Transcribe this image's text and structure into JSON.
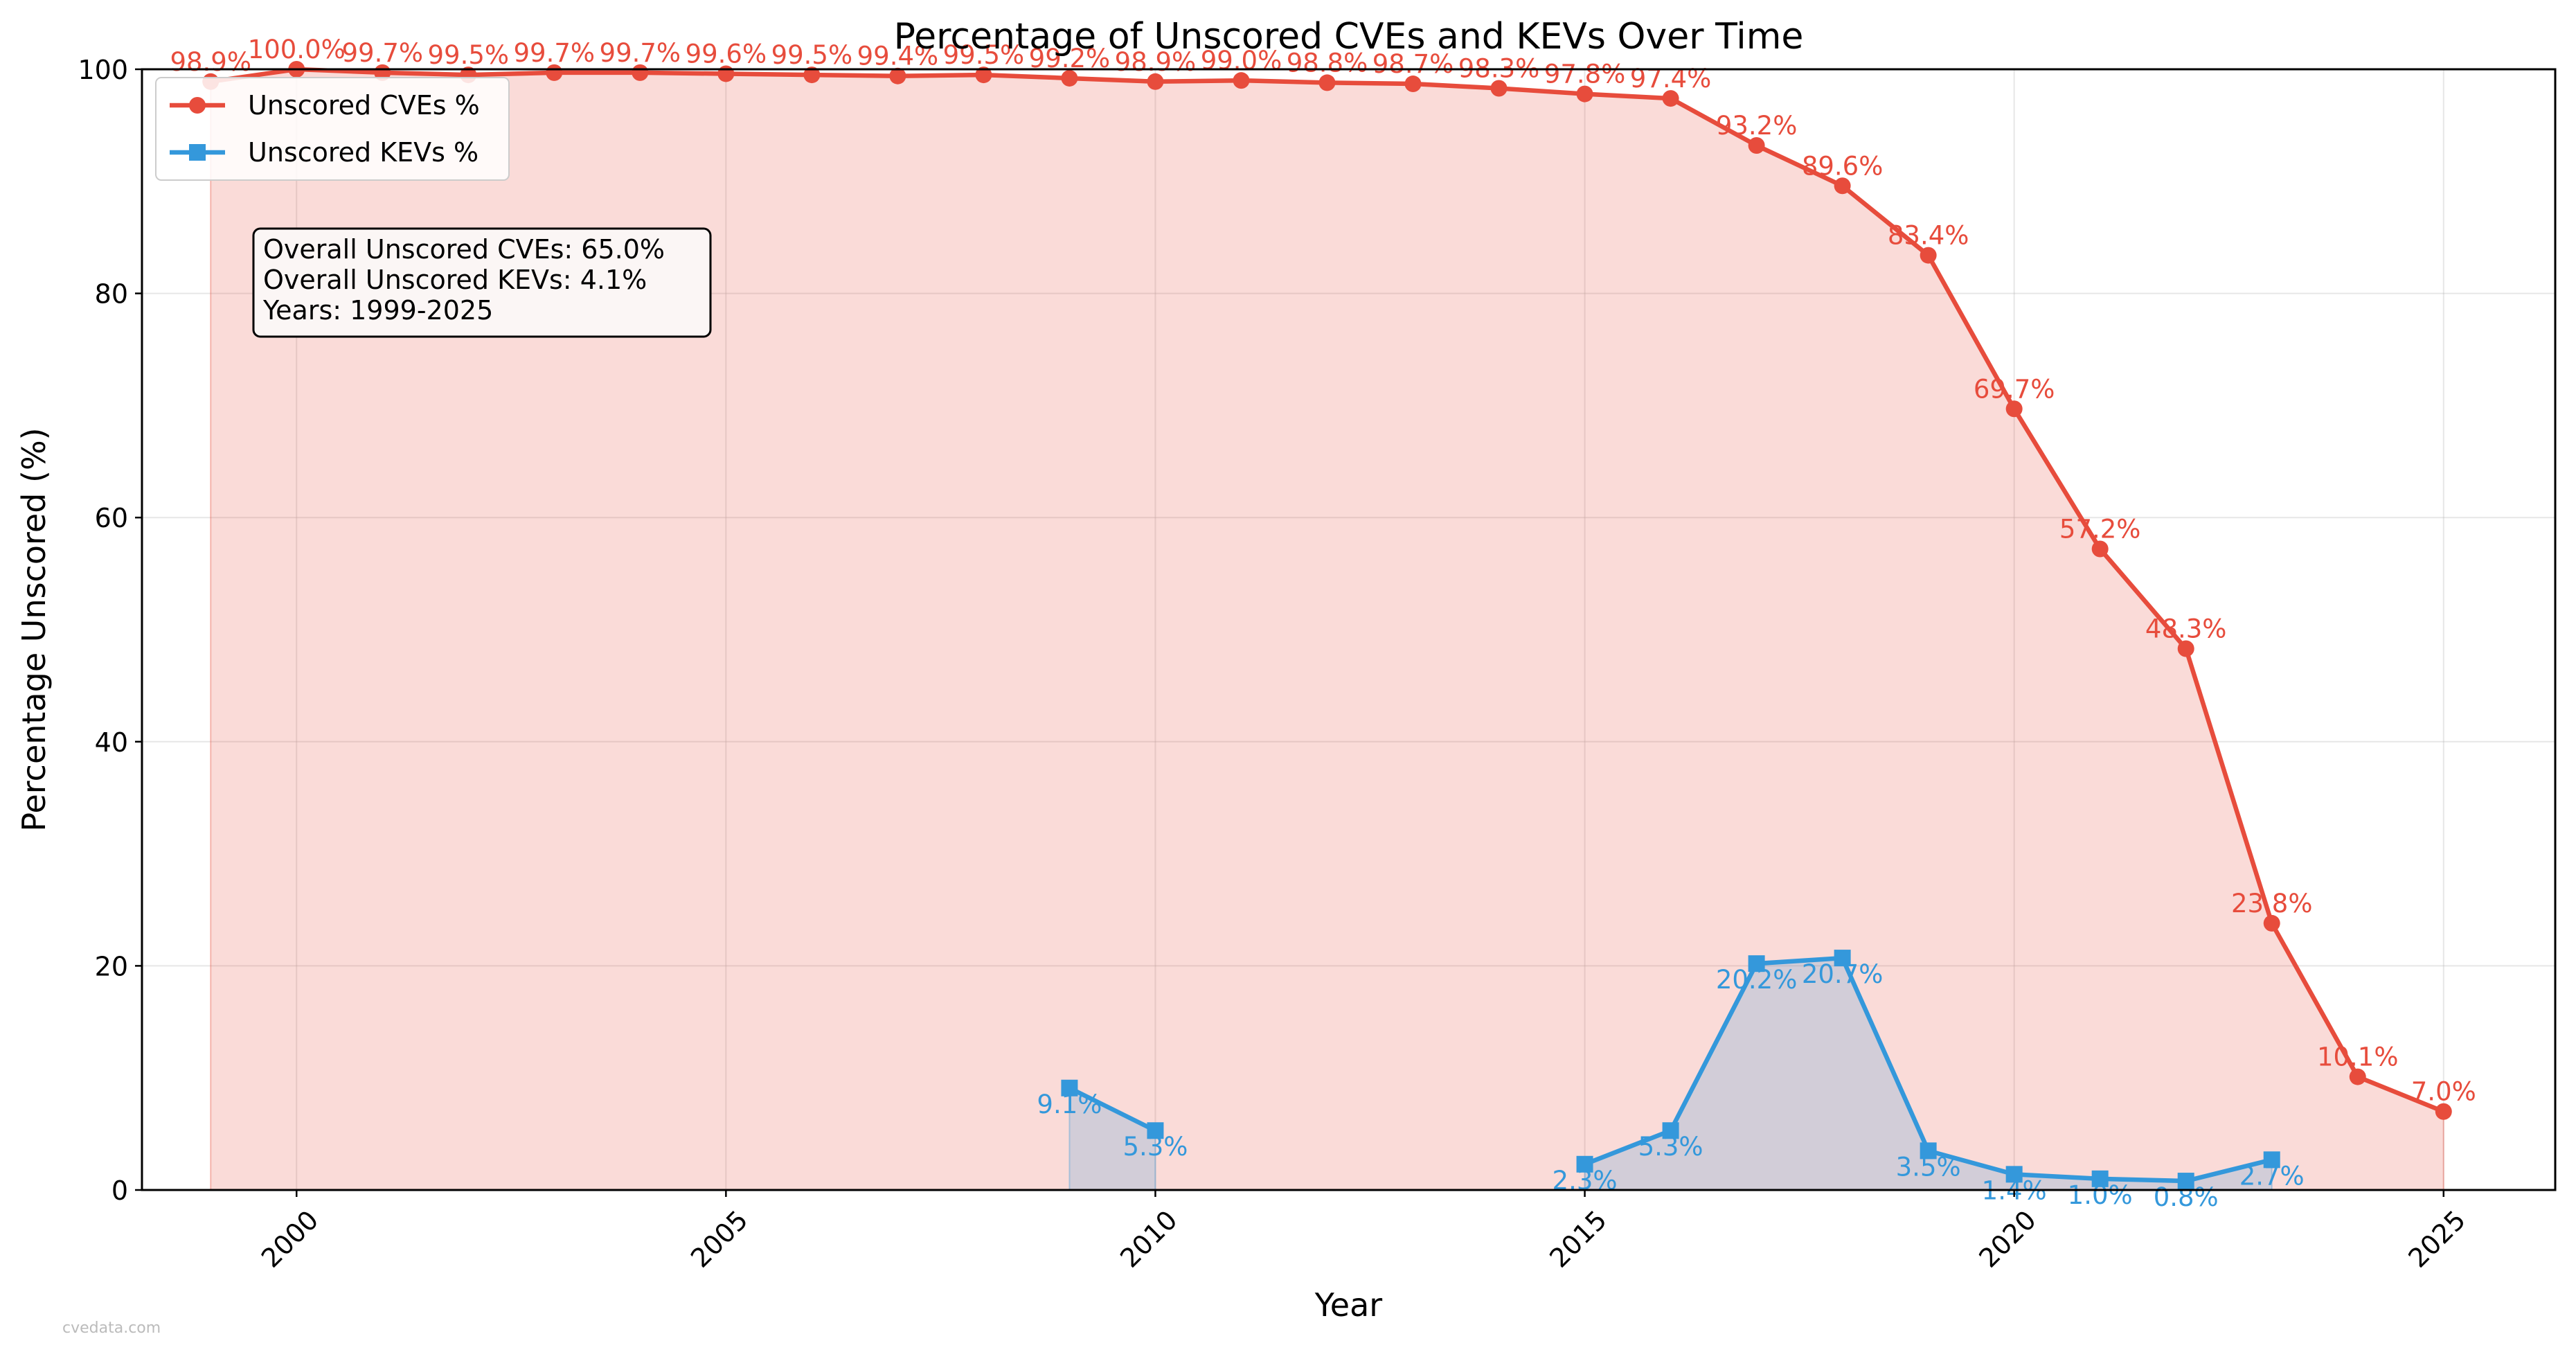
{
  "chart_data": {
    "type": "line",
    "title": "Percentage of Unscored CVEs and KEVs Over Time",
    "xlabel": "Year",
    "ylabel": "Percentage Unscored (%)",
    "xlim": [
      1998.2,
      2026.3
    ],
    "ylim": [
      0,
      100
    ],
    "x_ticks": [
      2000,
      2005,
      2010,
      2015,
      2020,
      2025
    ],
    "y_ticks": [
      0,
      20,
      40,
      60,
      80,
      100
    ],
    "grid": true,
    "legend_position": "top-left",
    "series": [
      {
        "name": "Unscored CVEs %",
        "color": "#e74c3c",
        "fill": "#f9d9d6",
        "marker": "circle",
        "x": [
          1999,
          2000,
          2001,
          2002,
          2003,
          2004,
          2005,
          2006,
          2007,
          2008,
          2009,
          2010,
          2011,
          2012,
          2013,
          2014,
          2015,
          2016,
          2017,
          2018,
          2019,
          2020,
          2021,
          2022,
          2023,
          2024,
          2025
        ],
        "values": [
          98.9,
          100.0,
          99.7,
          99.5,
          99.7,
          99.7,
          99.6,
          99.5,
          99.4,
          99.5,
          99.2,
          98.9,
          99.0,
          98.8,
          98.7,
          98.3,
          97.8,
          97.4,
          93.2,
          89.6,
          83.4,
          69.7,
          57.2,
          48.3,
          23.8,
          10.1,
          7.0
        ],
        "labels": [
          "98.9%",
          "100.0%",
          "99.7%",
          "99.5%",
          "99.7%",
          "99.7%",
          "99.6%",
          "99.5%",
          "99.4%",
          "99.5%",
          "99.2%",
          "98.9%",
          "99.0%",
          "98.8%",
          "98.7%",
          "98.3%",
          "97.8%",
          "97.4%",
          "93.2%",
          "89.6%",
          "83.4%",
          "69.7%",
          "57.2%",
          "48.3%",
          "23.8%",
          "10.1%",
          "7.0%"
        ]
      },
      {
        "name": "Unscored KEVs %",
        "color": "#3498db",
        "fill": "#cfcfe0",
        "marker": "square",
        "segments": [
          {
            "x": [
              2009,
              2010
            ],
            "values": [
              9.1,
              5.3
            ],
            "labels": [
              "9.1%",
              "5.3%"
            ]
          },
          {
            "x": [
              2015,
              2016,
              2017,
              2018,
              2019,
              2020,
              2021,
              2022,
              2023
            ],
            "values": [
              2.3,
              5.3,
              20.2,
              20.7,
              3.5,
              1.4,
              1.0,
              0.8,
              2.7
            ],
            "labels": [
              "2.3%",
              "5.3%",
              "20.2%",
              "20.7%",
              "3.5%",
              "1.4%",
              "1.0%",
              "0.8%",
              "2.7%"
            ]
          }
        ]
      }
    ],
    "annotation_box": {
      "lines": [
        "Overall Unscored CVEs: 65.0%",
        "Overall Unscored KEVs: 4.1%",
        "Years: 1999-2025"
      ]
    }
  },
  "watermark": "cvedata.com"
}
